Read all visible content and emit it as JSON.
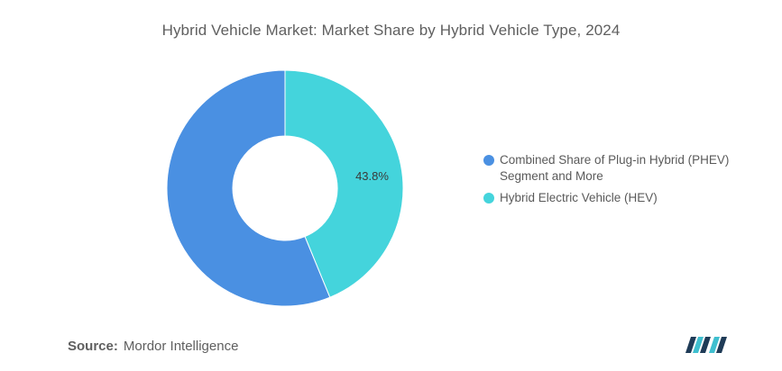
{
  "chart_data": {
    "type": "pie",
    "variant": "donut",
    "title": "Hybrid Vehicle Market: Market Share by Hybrid Vehicle Type, 2024",
    "categories": [
      "Hybrid Electric Vehicle (HEV)",
      "Combined Share of Plug-in Hybrid (PHEV) Segment and More"
    ],
    "values": [
      43.8,
      56.2
    ],
    "data_labels": [
      "43.8%",
      ""
    ],
    "colors": [
      "#44d4dc",
      "#4a90e2"
    ],
    "legend": {
      "placement": "right",
      "entries": [
        {
          "label": "Combined Share of Plug-in Hybrid (PHEV) Segment and More",
          "color": "#4a90e2"
        },
        {
          "label": "Hybrid Electric Vehicle (HEV)",
          "color": "#44d4dc"
        }
      ]
    }
  },
  "footer": {
    "source_label": "Source:",
    "source_value": "Mordor Intelligence"
  },
  "logo": {
    "icon": "mordor-intelligence-logo-icon",
    "colors": [
      "#1f3b57",
      "#3fbfcf"
    ]
  }
}
